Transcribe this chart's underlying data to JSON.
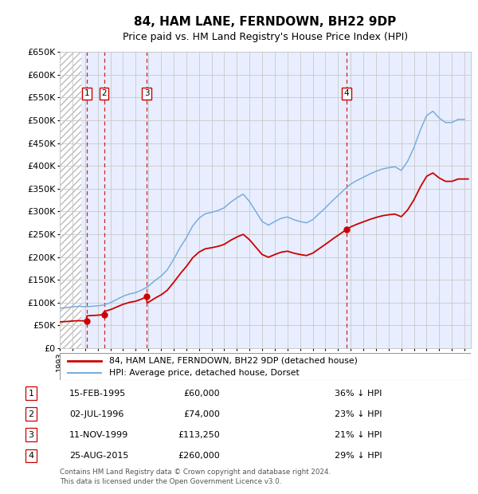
{
  "title": "84, HAM LANE, FERNDOWN, BH22 9DP",
  "subtitle": "Price paid vs. HM Land Registry's House Price Index (HPI)",
  "ylim": [
    0,
    650000
  ],
  "yticks": [
    0,
    50000,
    100000,
    150000,
    200000,
    250000,
    300000,
    350000,
    400000,
    450000,
    500000,
    550000,
    600000,
    650000
  ],
  "xlim_start": 1993.0,
  "xlim_end": 2025.5,
  "bg_hatch_color": "#bbbbbb",
  "bg_fill_color": "#e8eeff",
  "grid_color": "#c8c8c8",
  "sale_color": "#cc0000",
  "hpi_color": "#7aaddd",
  "vline_color": "#cc0000",
  "sales": [
    {
      "num": 1,
      "date_num": 1995.12,
      "price": 60000,
      "date_str": "15-FEB-1995",
      "price_str": "£60,000",
      "pct": "36% ↓ HPI"
    },
    {
      "num": 2,
      "date_num": 1996.5,
      "price": 74000,
      "date_str": "02-JUL-1996",
      "price_str": "£74,000",
      "pct": "23% ↓ HPI"
    },
    {
      "num": 3,
      "date_num": 1999.87,
      "price": 113250,
      "date_str": "11-NOV-1999",
      "price_str": "£113,250",
      "pct": "21% ↓ HPI"
    },
    {
      "num": 4,
      "date_num": 2015.65,
      "price": 260000,
      "date_str": "25-AUG-2015",
      "price_str": "£260,000",
      "pct": "29% ↓ HPI"
    }
  ],
  "legend_sale_label": "84, HAM LANE, FERNDOWN, BH22 9DP (detached house)",
  "legend_hpi_label": "HPI: Average price, detached house, Dorset",
  "footer": "Contains HM Land Registry data © Crown copyright and database right 2024.\nThis data is licensed under the Open Government Licence v3.0.",
  "table_rows": [
    [
      "1",
      "15-FEB-1995",
      "£60,000",
      "36% ↓ HPI"
    ],
    [
      "2",
      "02-JUL-1996",
      "£74,000",
      "23% ↓ HPI"
    ],
    [
      "3",
      "11-NOV-1999",
      "£113,250",
      "21% ↓ HPI"
    ],
    [
      "4",
      "25-AUG-2015",
      "£260,000",
      "29% ↓ HPI"
    ]
  ],
  "years_hpi": [
    1993.0,
    1993.5,
    1994.0,
    1994.5,
    1995.0,
    1995.5,
    1996.0,
    1996.5,
    1997.0,
    1997.5,
    1998.0,
    1998.5,
    1999.0,
    1999.5,
    2000.0,
    2000.5,
    2001.0,
    2001.5,
    2002.0,
    2002.5,
    2003.0,
    2003.5,
    2004.0,
    2004.5,
    2005.0,
    2005.5,
    2006.0,
    2006.5,
    2007.0,
    2007.5,
    2008.0,
    2008.5,
    2009.0,
    2009.5,
    2010.0,
    2010.5,
    2011.0,
    2011.5,
    2012.0,
    2012.5,
    2013.0,
    2013.5,
    2014.0,
    2014.5,
    2015.0,
    2015.5,
    2016.0,
    2016.5,
    2017.0,
    2017.5,
    2018.0,
    2018.5,
    2019.0,
    2019.5,
    2020.0,
    2020.5,
    2021.0,
    2021.5,
    2022.0,
    2022.5,
    2023.0,
    2023.5,
    2024.0,
    2024.5,
    2025.0
  ],
  "vals_hpi": [
    88000,
    89000,
    91000,
    92000,
    91000,
    92000,
    93000,
    95000,
    100000,
    107000,
    114000,
    119000,
    122000,
    128000,
    136000,
    148000,
    158000,
    172000,
    195000,
    220000,
    242000,
    268000,
    285000,
    295000,
    298000,
    302000,
    308000,
    320000,
    330000,
    338000,
    322000,
    300000,
    278000,
    270000,
    278000,
    285000,
    288000,
    282000,
    278000,
    275000,
    282000,
    295000,
    308000,
    322000,
    335000,
    348000,
    360000,
    368000,
    375000,
    382000,
    388000,
    393000,
    396000,
    398000,
    390000,
    410000,
    440000,
    478000,
    510000,
    520000,
    505000,
    495000,
    495000,
    502000,
    502000
  ]
}
